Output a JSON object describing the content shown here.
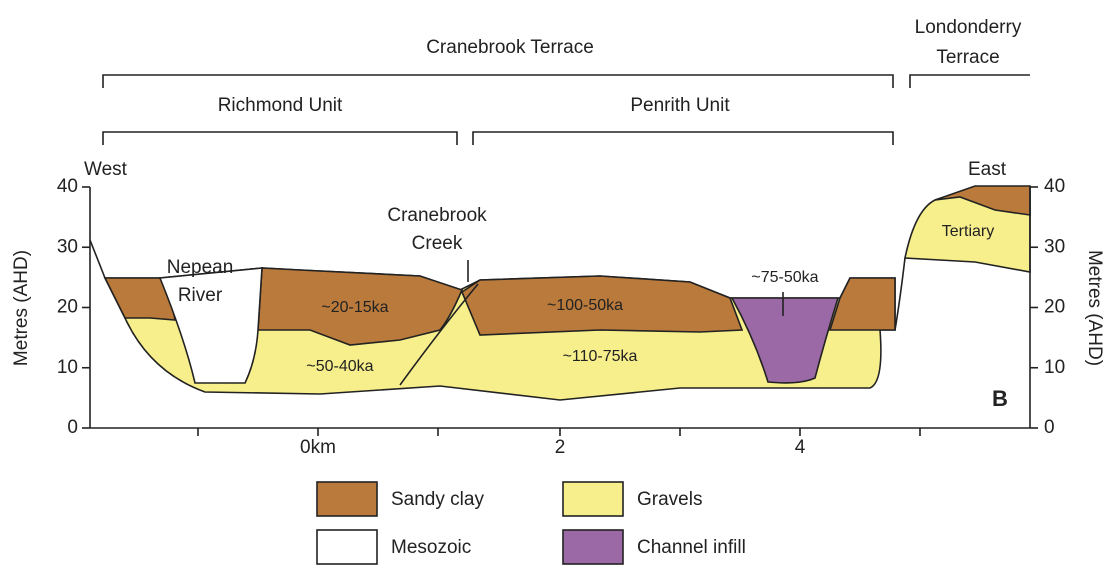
{
  "header": {
    "terrace_left": "Cranebrook Terrace",
    "terrace_right": [
      "Londonderry",
      "Terrace"
    ]
  },
  "units": [
    "Richmond Unit",
    "Penrith Unit"
  ],
  "directions": {
    "west": "West",
    "east": "East"
  },
  "axes": {
    "y_label_left": "Metres (AHD)",
    "y_label_right": "Metres (AHD)",
    "yticks": [
      0,
      10,
      20,
      30,
      40
    ],
    "xticks": [
      "0km",
      "2",
      "4"
    ]
  },
  "labels": {
    "nepean": [
      "Nepean",
      "River"
    ],
    "creek": [
      "Cranebrook",
      "Creek"
    ],
    "age_1": "~20-15ka",
    "age_2": "~100-50ka",
    "age_3": "~75-50ka",
    "age_4": "~50-40ka",
    "age_5": "~110-75ka",
    "tertiary": "Tertiary",
    "panel": "B"
  },
  "legend": [
    {
      "label": "Sandy clay",
      "color": "#b97a3c"
    },
    {
      "label": "Gravels",
      "color": "#f7ef8c"
    },
    {
      "label": "Mesozoic",
      "color": "#ffffff"
    },
    {
      "label": "Channel infill",
      "color": "#9b6aa6"
    }
  ]
}
